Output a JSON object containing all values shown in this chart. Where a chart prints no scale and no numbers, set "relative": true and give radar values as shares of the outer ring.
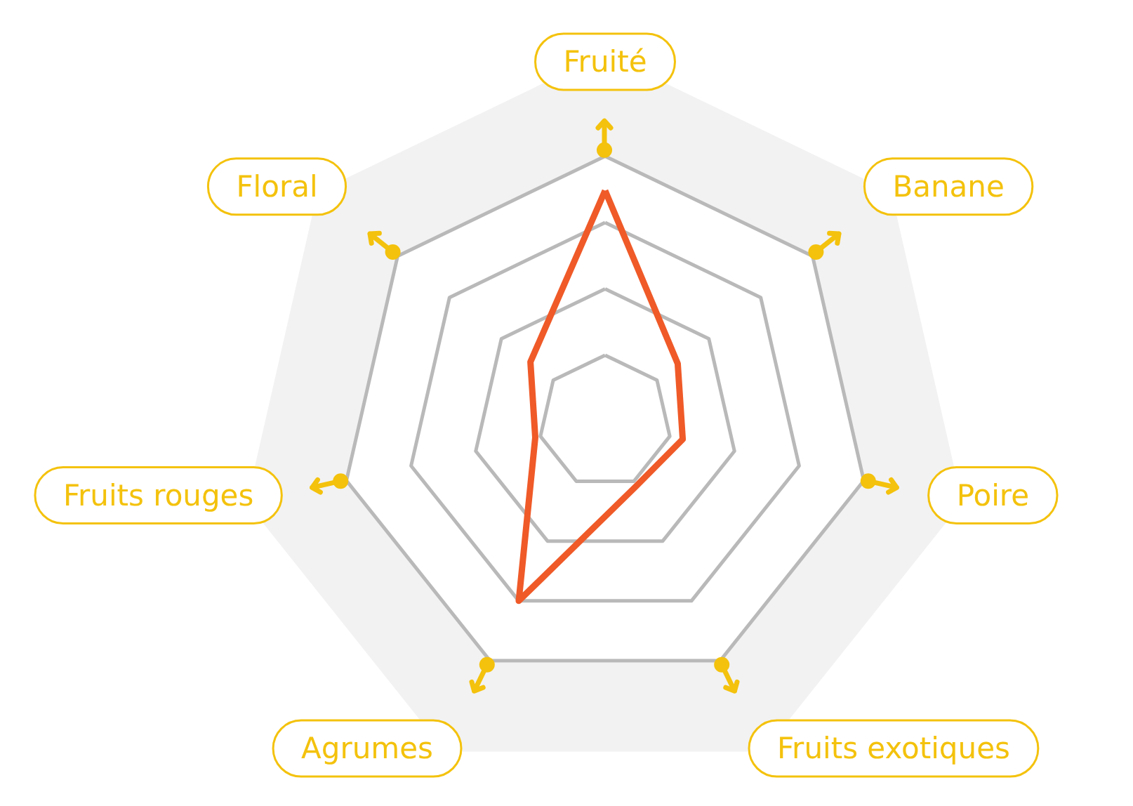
{
  "chart_data": {
    "type": "radar",
    "categories": [
      "Fruité",
      "Banane",
      "Poire",
      "Fruits exotiques",
      "Agrumes",
      "Fruits rouges",
      "Floral"
    ],
    "relative": true,
    "series": [
      {
        "color": "#ef5a28",
        "values": [
          0.87,
          0.35,
          0.3,
          0.27,
          0.75,
          0.27,
          0.36
        ]
      }
    ],
    "grid": true,
    "line_style": "solid"
  }
}
